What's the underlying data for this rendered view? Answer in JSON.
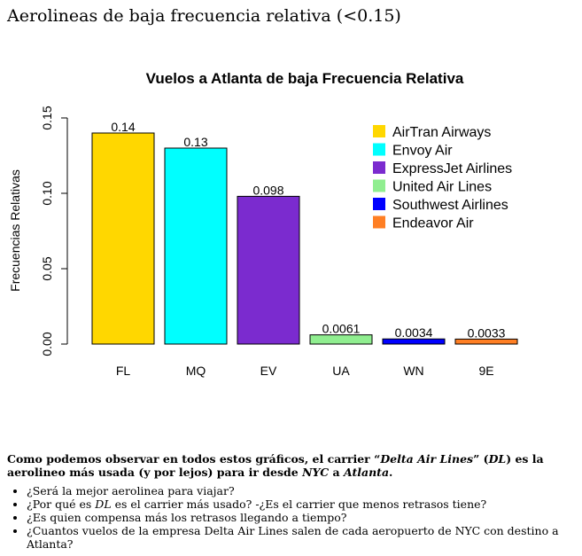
{
  "page": {
    "heading": "Aerolineas de baja frecuencia relativa (<0.15)",
    "paragraph": "Como podemos observar en todos estos gráficos, el carrier “Delta Air Lines” (DL) es la aerolineo más usada (y por lejos) para ir desde NYC a Atlanta.",
    "bullets": [
      "¿Será la mejor aerolinea para viajar?",
      "¿Por qué es DL es el carrier más usado? -¿Es el carrier que menos retrasos tiene?",
      "¿Es quien compensa más los retrasos llegando a tiempo?",
      "¿Cuantos vuelos de la empresa Delta Air Lines salen de cada aeropuerto de NYC con destino a Atlanta?"
    ]
  },
  "chart_data": {
    "type": "bar",
    "title": "Vuelos a Atlanta de baja Frecuencia Relativa",
    "xlabel": "",
    "ylabel": "Frecuencias Relativas",
    "ylim": [
      0,
      0.15
    ],
    "yticks": [
      "0.00",
      "0.05",
      "0.10",
      "0.15"
    ],
    "categories": [
      "FL",
      "MQ",
      "EV",
      "UA",
      "WN",
      "9E"
    ],
    "values": [
      0.14,
      0.13,
      0.098,
      0.0061,
      0.0034,
      0.0033
    ],
    "data_labels": [
      "0.14",
      "0.13",
      "0.098",
      "0.0061",
      "0.0034",
      "0.0033"
    ],
    "colors": [
      "#FFD700",
      "#00FFFF",
      "#7B2BCF",
      "#90EE90",
      "#0000FF",
      "#FF7F24"
    ],
    "legend": {
      "placement": "top-right",
      "entries": [
        "AirTran Airways",
        "Envoy Air",
        "ExpressJet Airlines",
        "United Air Lines",
        "Southwest Airlines",
        "Endeavor Air"
      ]
    },
    "grid": false
  }
}
